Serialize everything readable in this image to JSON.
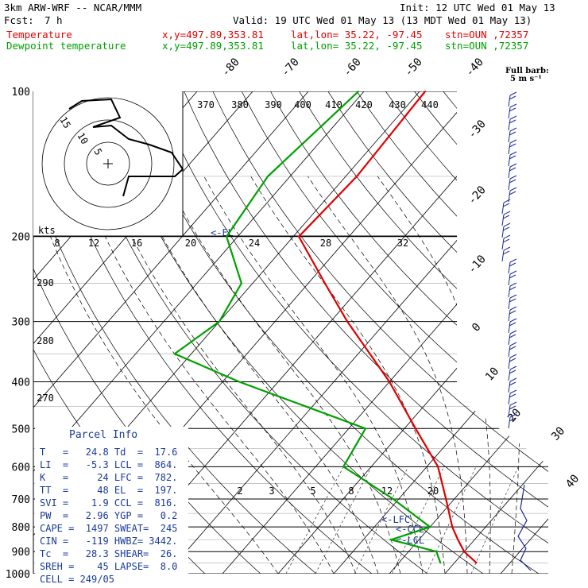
{
  "header": {
    "model": "3km ARW-WRF -- NCAR/MMM",
    "init": "Init: 12 UTC Wed 01 May 13",
    "fcst_label": "Fcst:",
    "fcst_value": "7 h",
    "valid": "Valid: 19 UTC Wed 01 May 13 (13 MDT Wed 01 May 13)",
    "line_temp": {
      "name": "Temperature",
      "xy": "x,y=497.89,353.81",
      "latlon": "lat,lon= 35.22, -97.45",
      "stn": "stn=OUN ,72357"
    },
    "line_dew": {
      "name": "Dewpoint temperature",
      "xy": "x,y=497.89,353.81",
      "latlon": "lat,lon= 35.22, -97.45",
      "stn": "stn=OUN ,72357"
    }
  },
  "colors": {
    "temperature": "#e00000",
    "dewpoint": "#00a000",
    "parcel_info": "#1a3a9a",
    "wind": "#1a2a9a"
  },
  "barb_legend": {
    "line1": "Full barb:",
    "line2": "5 m s⁻¹"
  },
  "chart_data": {
    "type": "line",
    "title": "",
    "diagram": "skew-T log-P",
    "y_axis": {
      "quantity": "pressure",
      "ticks": [
        "100",
        "200",
        "300",
        "400",
        "500",
        "600",
        "700",
        "800",
        "900",
        "1000"
      ],
      "scale": "log"
    },
    "isotherm_labels": [
      "-80",
      "-70",
      "-60",
      "-50",
      "-40",
      "-30",
      "-20",
      "-10",
      "0",
      "10",
      "20",
      "30",
      "40"
    ],
    "theta_labels": [
      "370",
      "380",
      "390",
      "400",
      "410",
      "420",
      "430",
      "440"
    ],
    "theta_e_labels": [
      "290",
      "280",
      "270"
    ],
    "mixing_ratio_labels": [
      "2",
      "3",
      "5",
      "8",
      "12",
      "20"
    ],
    "hodograph": {
      "ring_labels": [
        "5",
        "10",
        "15"
      ],
      "speed_label": "kts",
      "speed_ticks": [
        "8",
        "12",
        "16",
        "20",
        "24",
        "28",
        "32"
      ]
    },
    "annotations": [
      "<-EL",
      "<-LFC",
      "<-CCL",
      "<-LCL"
    ],
    "series": [
      {
        "name": "Temperature",
        "points": [
          [
            100,
            -59
          ],
          [
            150,
            -58
          ],
          [
            200,
            -59
          ],
          [
            250,
            -47
          ],
          [
            300,
            -37
          ],
          [
            400,
            -20
          ],
          [
            500,
            -8
          ],
          [
            600,
            2
          ],
          [
            700,
            8.5
          ],
          [
            800,
            14
          ],
          [
            850,
            17
          ],
          [
            900,
            20
          ],
          [
            950,
            24
          ]
        ]
      },
      {
        "name": "Dewpoint temperature",
        "points": [
          [
            100,
            -71
          ],
          [
            150,
            -74
          ],
          [
            200,
            -72
          ],
          [
            250,
            -62
          ],
          [
            300,
            -60
          ],
          [
            350,
            -63
          ],
          [
            400,
            -47
          ],
          [
            500,
            -17
          ],
          [
            600,
            -15
          ],
          [
            700,
            -1
          ],
          [
            800,
            10
          ],
          [
            850,
            5
          ],
          [
            900,
            15
          ],
          [
            950,
            17.5
          ]
        ]
      }
    ]
  },
  "parcel_info": {
    "title": "Parcel Info",
    "rows": [
      "T   =   24.8 Td  =  17.6",
      "LI  =   -5.3 LCL =  864.",
      "K   =     24 LFC =  782.",
      "TT  =     48 EL  =  197.",
      "SVI =    1.9 CCL =  816.",
      "PW  =   2.96 YGP =   0.2",
      "CAPE =  1497 SWEAT=  245",
      "CIN =   -119 HWBZ= 3442.",
      "Tc  =   28.3 SHEAR=  26.",
      "SREH =    45 LAPSE=  8.0",
      "CELL = 249/05"
    ]
  }
}
